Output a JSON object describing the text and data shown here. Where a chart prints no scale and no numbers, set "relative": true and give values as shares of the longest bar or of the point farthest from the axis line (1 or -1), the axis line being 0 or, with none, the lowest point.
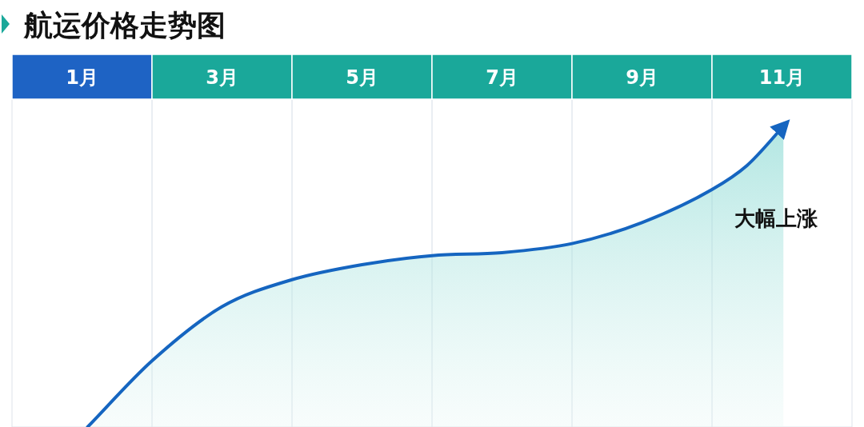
{
  "chart_data": {
    "type": "area",
    "title": "航运价格走势图",
    "relative": true,
    "x": [
      1.08,
      2,
      3,
      4,
      5,
      6,
      7,
      8,
      9,
      10,
      10.5,
      11.02
    ],
    "series": [
      {
        "color": "#1565c0",
        "values": [
          0,
          0.22,
          0.4,
          0.49,
          0.54,
          0.57,
          0.58,
          0.61,
          0.68,
          0.79,
          0.87,
          1
        ]
      }
    ],
    "xlim": [
      0,
      12
    ],
    "xticks": [
      {
        "value": 1,
        "label": "1月"
      },
      {
        "value": 2,
        "label": null
      },
      {
        "value": 3,
        "label": "3月"
      },
      {
        "value": 4,
        "label": null
      },
      {
        "value": 5,
        "label": "5月"
      },
      {
        "value": 6,
        "label": null
      },
      {
        "value": 7,
        "label": "7月"
      },
      {
        "value": 8,
        "label": null
      },
      {
        "value": 9,
        "label": "9月"
      },
      {
        "value": 10,
        "label": null
      },
      {
        "value": 11,
        "label": "11月"
      }
    ],
    "grid": "x",
    "annotations": [
      "大幅上涨"
    ]
  }
}
